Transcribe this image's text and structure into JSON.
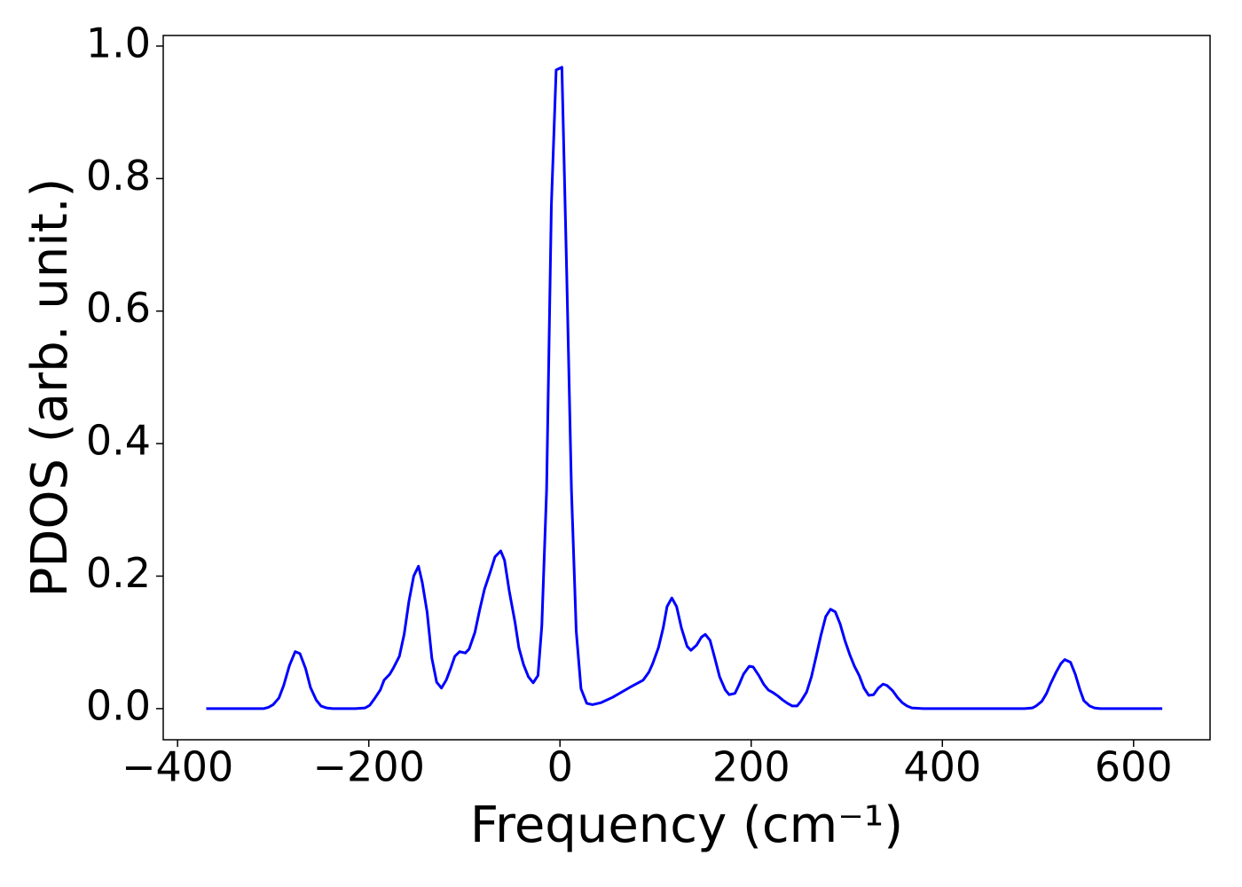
{
  "chart_data": {
    "type": "line",
    "xlabel": "Frequency (cm⁻¹)",
    "ylabel": "PDOS (arb. unit.)",
    "color": "#0000ff",
    "xlim": [
      -415,
      680
    ],
    "ylim": [
      -0.047,
      1.016
    ],
    "xticks": [
      {
        "value": -400,
        "label": "−400"
      },
      {
        "value": -200,
        "label": "−200"
      },
      0,
      200,
      400,
      600
    ],
    "yticks": [
      {
        "value": 0,
        "label": "0.0"
      },
      0.2,
      0.4,
      0.6,
      0.8,
      {
        "value": 1,
        "label": "1.0"
      }
    ],
    "x": [
      -370,
      -310,
      -305,
      -300,
      -294,
      -289,
      -283,
      -277,
      -272,
      -266,
      -261,
      -255,
      -250,
      -244,
      -238,
      -214,
      -204,
      -199,
      -194,
      -188,
      -184,
      -178,
      -174,
      -168,
      -163,
      -158,
      -153,
      -148,
      -144,
      -139,
      -134,
      -129,
      -124,
      -119,
      -114,
      -110,
      -105,
      -99,
      -95,
      -89,
      -84,
      -79,
      -73,
      -68,
      -62,
      -58,
      -53,
      -47,
      -43,
      -38,
      -33,
      -28,
      -23,
      -19,
      -14,
      -9,
      -4,
      2,
      7,
      12,
      17,
      22,
      28,
      34,
      43,
      55,
      73,
      87,
      93,
      97,
      103,
      108,
      112,
      117,
      122,
      127,
      133,
      137,
      143,
      148,
      152,
      157,
      162,
      167,
      173,
      177,
      183,
      187,
      192,
      198,
      202,
      208,
      213,
      218,
      223,
      228,
      233,
      238,
      243,
      248,
      252,
      258,
      263,
      268,
      273,
      278,
      283,
      288,
      293,
      298,
      303,
      308,
      313,
      318,
      323,
      328,
      333,
      338,
      342,
      348,
      353,
      358,
      363,
      368,
      380,
      486,
      494,
      498,
      504,
      509,
      513,
      519,
      524,
      528,
      534,
      539,
      544,
      548,
      554,
      559,
      565,
      630
    ],
    "values": [
      0,
      0,
      0.002,
      0.006,
      0.016,
      0.035,
      0.065,
      0.086,
      0.083,
      0.06,
      0.032,
      0.013,
      0.004,
      0.001,
      0,
      0,
      0.001,
      0.005,
      0.015,
      0.028,
      0.043,
      0.052,
      0.062,
      0.079,
      0.112,
      0.162,
      0.2,
      0.215,
      0.19,
      0.146,
      0.076,
      0.04,
      0.031,
      0.043,
      0.062,
      0.079,
      0.086,
      0.084,
      0.09,
      0.115,
      0.149,
      0.18,
      0.206,
      0.229,
      0.238,
      0.224,
      0.177,
      0.13,
      0.092,
      0.066,
      0.048,
      0.039,
      0.05,
      0.125,
      0.33,
      0.76,
      0.964,
      0.968,
      0.66,
      0.33,
      0.117,
      0.03,
      0.008,
      0.006,
      0.009,
      0.017,
      0.032,
      0.043,
      0.055,
      0.068,
      0.092,
      0.122,
      0.154,
      0.167,
      0.154,
      0.122,
      0.094,
      0.088,
      0.096,
      0.108,
      0.112,
      0.103,
      0.076,
      0.048,
      0.028,
      0.021,
      0.023,
      0.035,
      0.052,
      0.064,
      0.063,
      0.05,
      0.037,
      0.028,
      0.024,
      0.019,
      0.013,
      0.008,
      0.004,
      0.004,
      0.011,
      0.025,
      0.048,
      0.079,
      0.111,
      0.139,
      0.15,
      0.146,
      0.128,
      0.103,
      0.082,
      0.064,
      0.05,
      0.031,
      0.02,
      0.021,
      0.031,
      0.037,
      0.035,
      0.027,
      0.017,
      0.009,
      0.004,
      0.001,
      0,
      0,
      0.001,
      0.004,
      0.011,
      0.023,
      0.037,
      0.055,
      0.068,
      0.074,
      0.07,
      0.052,
      0.028,
      0.012,
      0.004,
      0.001,
      0,
      0
    ]
  }
}
